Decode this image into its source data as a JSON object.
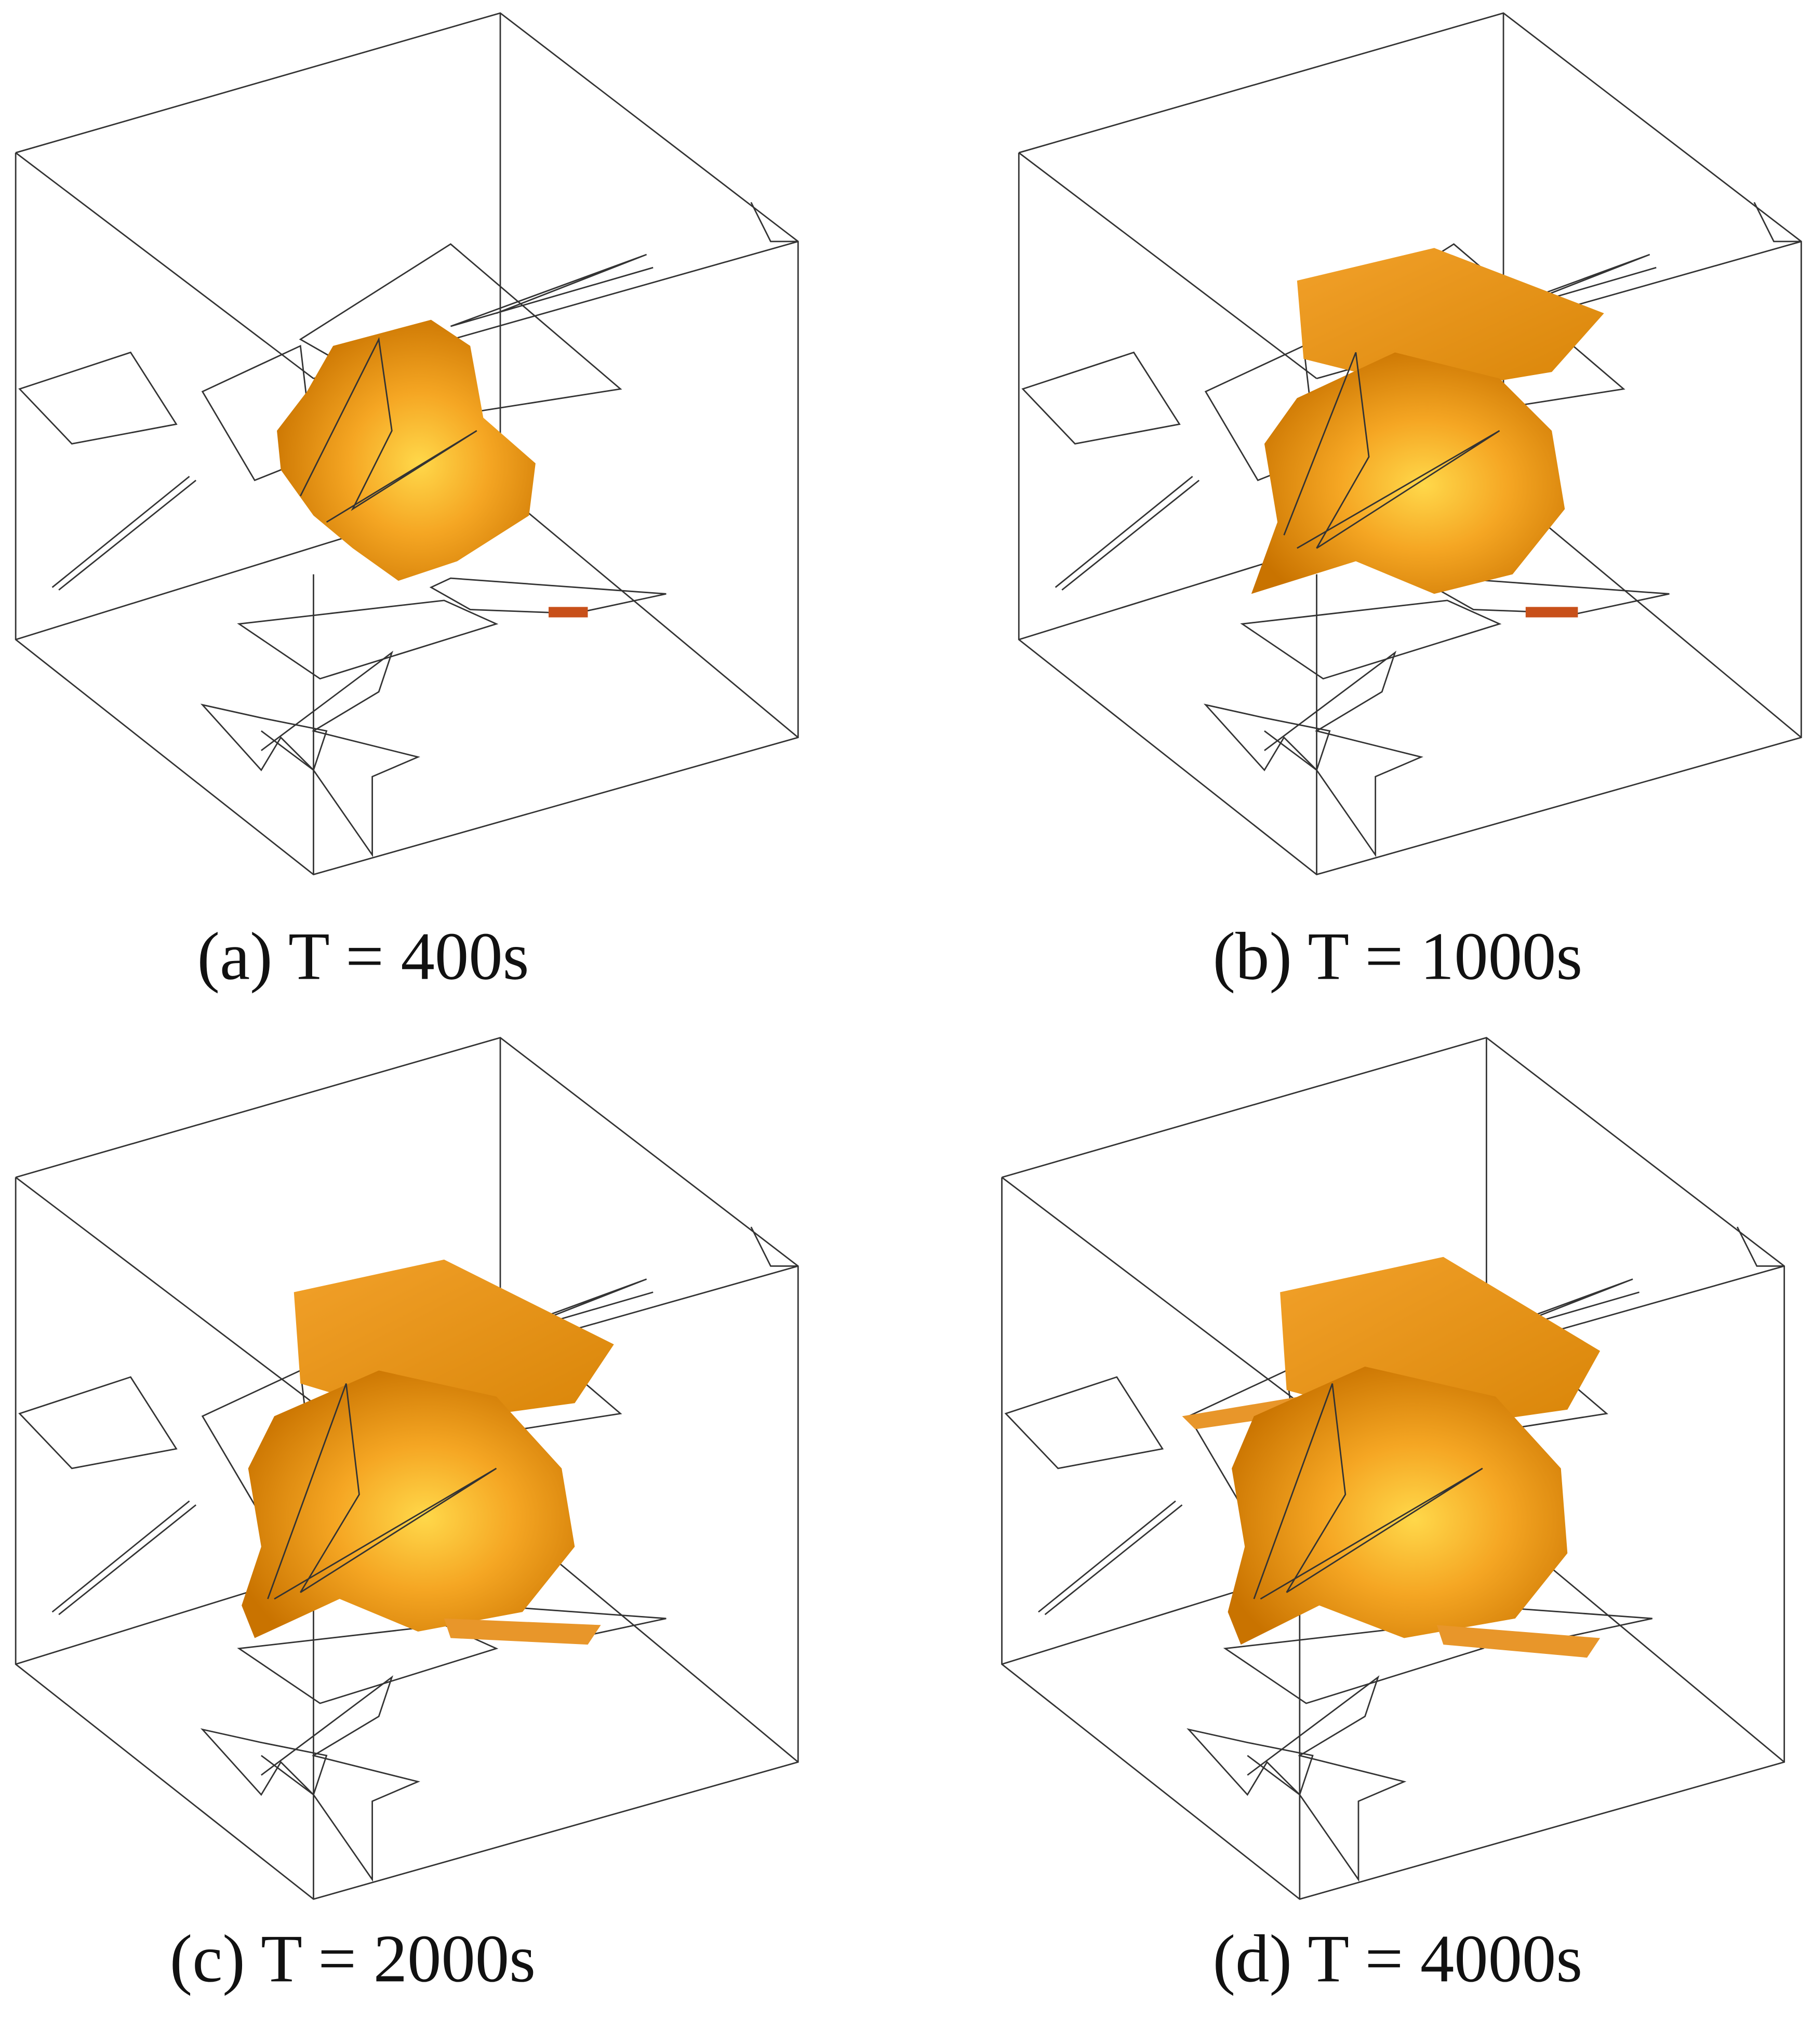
{
  "panels": [
    {
      "caption": "(a) T = 400s"
    },
    {
      "caption": "(b) T = 1000s"
    },
    {
      "caption": "(c) T = 2000s"
    },
    {
      "caption": "(d) T = 4000s"
    }
  ]
}
